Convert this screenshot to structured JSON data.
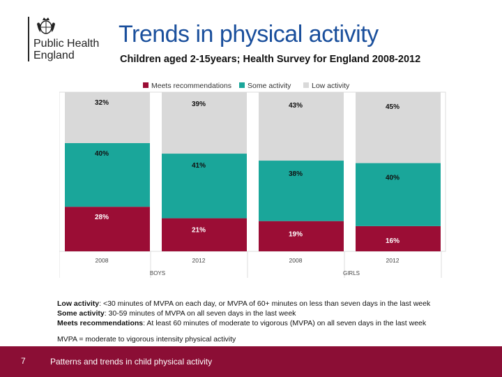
{
  "logo": {
    "line1": "Public Health",
    "line2": "England"
  },
  "title": "Trends in physical activity",
  "subtitle": "Children aged 2-15years; Health Survey for England 2008-2012",
  "colors": {
    "meets": "#9b0d35",
    "some": "#1aa69a",
    "low": "#d9d9d9",
    "footer": "#8b0e35",
    "title": "#1a4f9c"
  },
  "chart_data": {
    "type": "bar",
    "stacked": true,
    "categories": [
      "2008",
      "2012",
      "2008",
      "2012"
    ],
    "groups": [
      {
        "label": "BOYS",
        "categories": [
          "2008",
          "2012"
        ]
      },
      {
        "label": "GIRLS",
        "categories": [
          "2008",
          "2012"
        ]
      }
    ],
    "series": [
      {
        "name": "Meets recommendations",
        "values": [
          28,
          21,
          19,
          16
        ],
        "labels": [
          "28%",
          "21%",
          "19%",
          "16%"
        ]
      },
      {
        "name": "Some activity",
        "values": [
          40,
          41,
          38,
          40
        ],
        "labels": [
          "40%",
          "41%",
          "38%",
          "40%"
        ]
      },
      {
        "name": "Low activity",
        "values": [
          32,
          39,
          43,
          45
        ],
        "labels": [
          "32%",
          "39%",
          "43%",
          "45%"
        ]
      }
    ],
    "legend_position": "top",
    "ylim": [
      0,
      100
    ],
    "grid": false
  },
  "notes": {
    "low_term": "Low activity",
    "low_text": ": <30 minutes of MVPA on each day, or MVPA of 60+ minutes on less than seven days in the last week",
    "some_term": "Some activity",
    "some_text": ": 30-59 minutes of MVPA on all seven days in the last week",
    "meets_term": "Meets recommendations",
    "meets_text": ": At least 60 minutes of moderate to vigorous (MVPA) on all seven days in the last week",
    "mvpa_def": "MVPA = moderate to vigorous intensity physical activity"
  },
  "footer": {
    "page_number": "7",
    "text": "Patterns and trends in child physical activity"
  }
}
